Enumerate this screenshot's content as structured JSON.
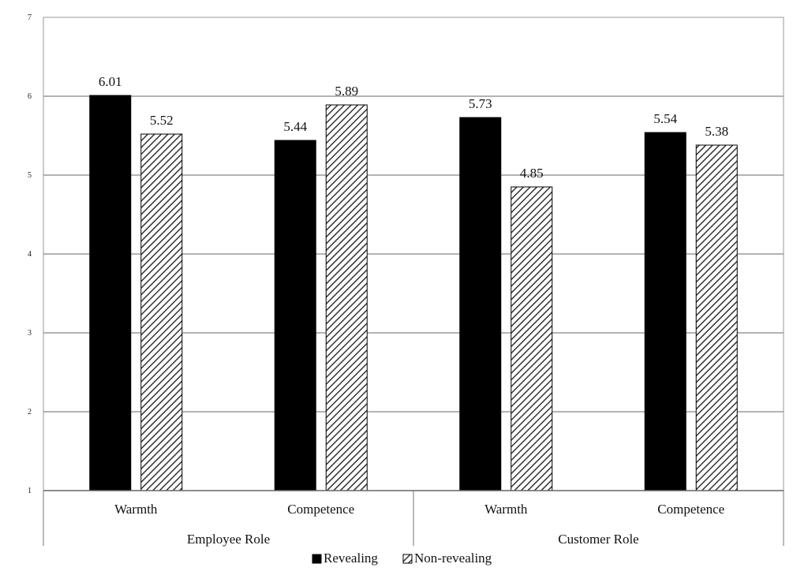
{
  "chart_data": {
    "type": "bar",
    "ylim": [
      1,
      7
    ],
    "yticks": [
      1,
      2,
      3,
      4,
      5,
      6,
      7
    ],
    "grid": true,
    "legend_position": "bottom",
    "groups": [
      {
        "label": "Employee Role",
        "categories": [
          "Warmth",
          "Competence"
        ]
      },
      {
        "label": "Customer Role",
        "categories": [
          "Warmth",
          "Competence"
        ]
      }
    ],
    "categories": [
      "Warmth",
      "Competence",
      "Warmth",
      "Competence"
    ],
    "series": [
      {
        "name": "Revealing",
        "color": "#000000",
        "pattern": "solid",
        "values": [
          6.01,
          5.44,
          5.73,
          5.54
        ]
      },
      {
        "name": "Non-revealing",
        "color": "#333333",
        "pattern": "diagonal-hatch",
        "values": [
          5.52,
          5.89,
          4.85,
          5.38
        ]
      }
    ]
  }
}
